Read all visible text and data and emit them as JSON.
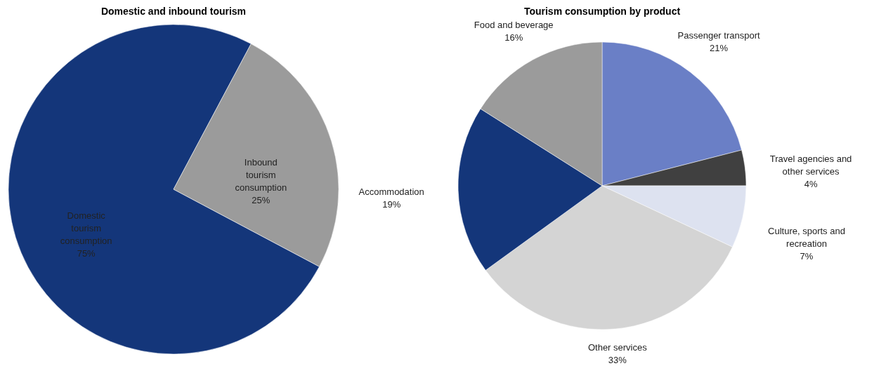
{
  "chart_data": [
    {
      "type": "pie",
      "title": "Domestic and inbound tourism",
      "categories": [
        "Domestic tourism consumption",
        "Inbound tourism consumption"
      ],
      "values": [
        75,
        25
      ],
      "colors": [
        "#14367a",
        "#9b9b9b"
      ],
      "value_labels": [
        "75%",
        "25%"
      ]
    },
    {
      "type": "pie",
      "title": "Tourism consumption by product",
      "categories": [
        "Passenger transport",
        "Travel agencies and other services",
        "Culture, sports and recreation",
        "Other services",
        "Accommodation",
        "Food and beverage"
      ],
      "values": [
        21,
        4,
        7,
        33,
        19,
        16
      ],
      "colors": [
        "#6a7fc6",
        "#404040",
        "#dde2f0",
        "#d4d4d4",
        "#14367a",
        "#9b9b9b"
      ],
      "value_labels": [
        "21%",
        "4%",
        "7%",
        "33%",
        "19%",
        "16%"
      ]
    }
  ]
}
